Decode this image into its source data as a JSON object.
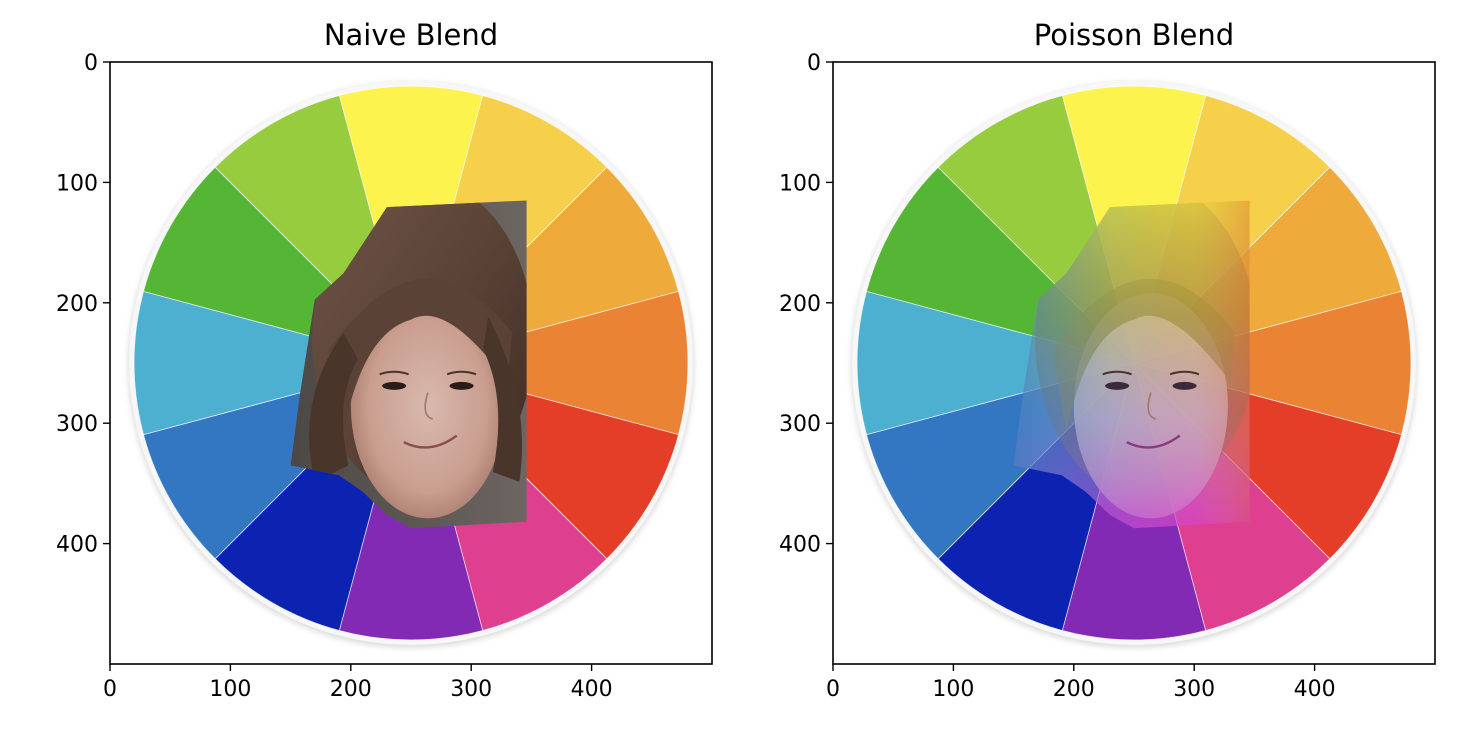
{
  "chart_data": [
    {
      "type": "image",
      "title": "Naive Blend",
      "xlim": [
        0,
        500
      ],
      "ylim": [
        500,
        0
      ],
      "xticks": [
        0,
        100,
        200,
        300,
        400
      ],
      "yticks": [
        0,
        100,
        200,
        300,
        400
      ],
      "grid": false,
      "image_content": {
        "background_color": "#ffffff",
        "color_wheel": {
          "center": [
            250,
            250
          ],
          "radius": 230,
          "segments": 12,
          "colors": [
            "#fcf34f",
            "#f6d04a",
            "#eeab3c",
            "#ea8333",
            "#e53e28",
            "#de3f8f",
            "#822ab4",
            "#0c23b2",
            "#3376c1",
            "#4eb0d1",
            "#55b635",
            "#98cc3f"
          ]
        },
        "pasted_photo_region": {
          "x": [
            150,
            350
          ],
          "y": [
            115,
            390
          ]
        },
        "blend_mode": "naive",
        "photo_description": "portrait of a young girl with brown hair and bangs, smirking"
      }
    },
    {
      "type": "image",
      "title": "Poisson Blend",
      "xlim": [
        0,
        500
      ],
      "ylim": [
        500,
        0
      ],
      "xticks": [
        0,
        100,
        200,
        300,
        400
      ],
      "yticks": [
        0,
        100,
        200,
        300,
        400
      ],
      "grid": false,
      "image_content": {
        "background_color": "#ffffff",
        "color_wheel": {
          "center": [
            250,
            250
          ],
          "radius": 230,
          "segments": 12,
          "colors": [
            "#fcf34f",
            "#f6d04a",
            "#eeab3c",
            "#ea8333",
            "#e53e28",
            "#de3f8f",
            "#822ab4",
            "#0c23b2",
            "#3376c1",
            "#4eb0d1",
            "#55b635",
            "#98cc3f"
          ]
        },
        "pasted_photo_region": {
          "x": [
            150,
            350
          ],
          "y": [
            115,
            390
          ]
        },
        "blend_mode": "poisson",
        "photo_description": "same portrait, recolored to match the wheel hues (yellow top, green/blue left, magenta bottom)"
      }
    }
  ]
}
